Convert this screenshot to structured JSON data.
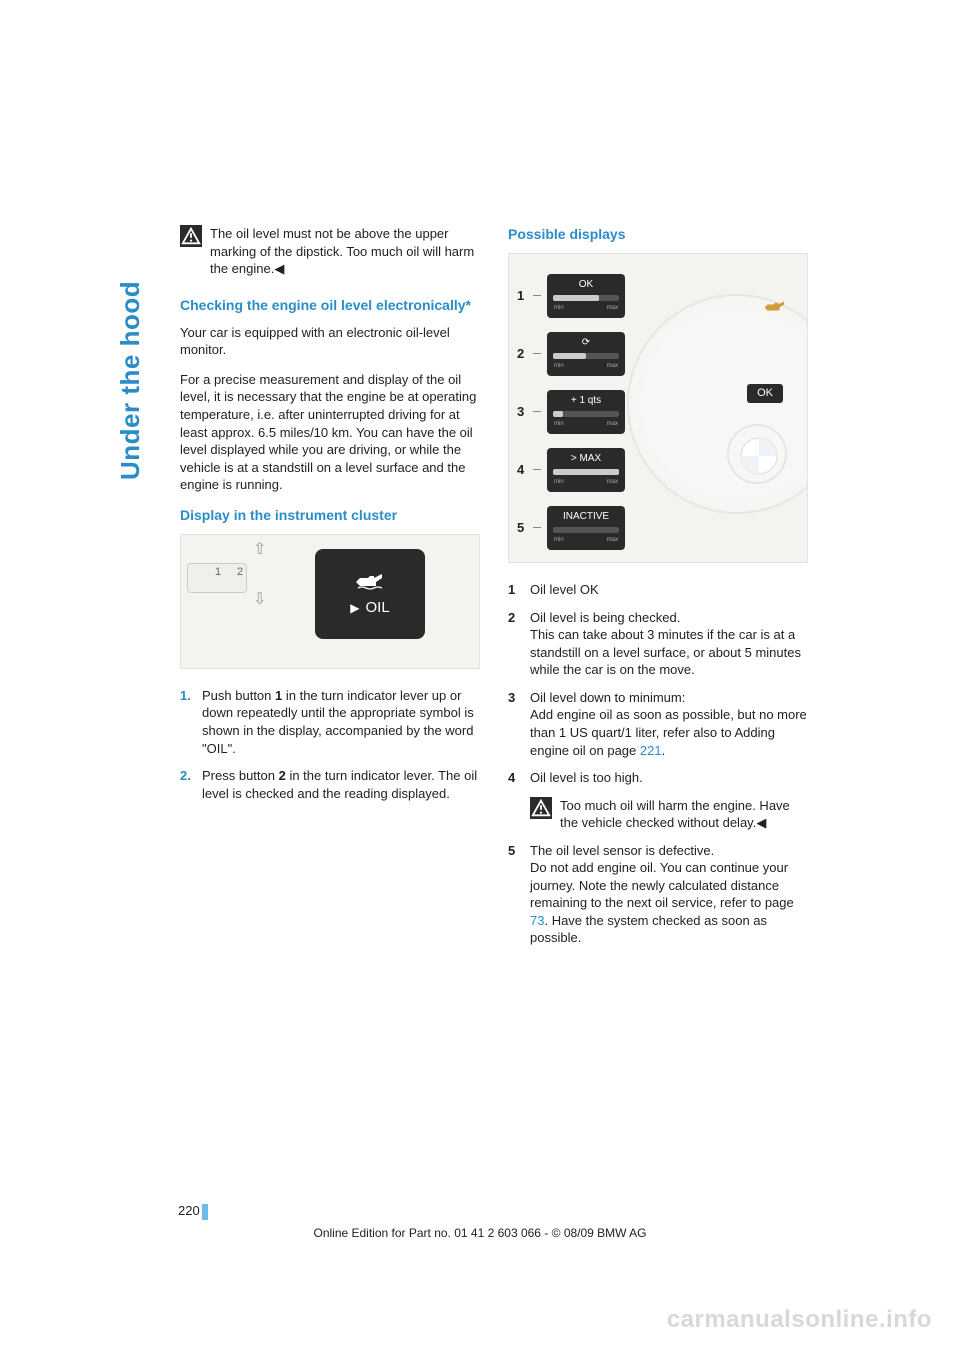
{
  "sidebar": {
    "label": "Under the hood"
  },
  "warning_top": {
    "text": "The oil level must not be above the upper marking of the dipstick. Too much oil will harm the engine.◀"
  },
  "section_check": {
    "heading": "Checking the engine oil level electronically*",
    "p1": "Your car is equipped with an electronic oil-level monitor.",
    "p2": "For a precise measurement and display of the oil level, it is necessary that the engine be at operating temperature, i.e. after uninterrupted driving for at least approx. 6.5 miles/10 km. You can have the oil level displayed while you are driving, or while the vehicle is at a standstill on a level surface and the engine is running."
  },
  "section_display": {
    "heading": "Display in the instrument cluster",
    "fig": {
      "oil_label": "OIL",
      "b1": "1",
      "b2": "2"
    },
    "steps": [
      {
        "n": "1.",
        "t": "Push button 1 in the turn indicator lever up or down repeatedly until the appropriate symbol is shown in the display, accompanied by the word \"OIL\"."
      },
      {
        "n": "2.",
        "t": "Press button 2 in the turn indicator lever. The oil level is checked and the reading displayed."
      }
    ]
  },
  "section_possible": {
    "heading": "Possible displays",
    "rows": [
      {
        "n": "1",
        "label": "OK",
        "fill_pct": 70
      },
      {
        "n": "2",
        "label": "⟳",
        "fill_pct": 50
      },
      {
        "n": "3",
        "label": "+ 1 qts",
        "fill_pct": 15
      },
      {
        "n": "4",
        "label": "> MAX",
        "fill_pct": 100
      },
      {
        "n": "5",
        "label": "INACTIVE",
        "fill_pct": 0
      }
    ],
    "ok_badge": "OK",
    "defs": [
      {
        "n": "1",
        "t": "Oil level OK"
      },
      {
        "n": "2",
        "t": "Oil level is being checked.\nThis can take about 3 minutes if the car is at a standstill on a level surface, or about 5 minutes while the car is on the move."
      },
      {
        "n": "3",
        "t_pre": "Oil level down to minimum:\nAdd engine oil as soon as possible, but no more than 1 US quart/1 liter, refer also to Adding engine oil on page ",
        "link": "221",
        "t_post": "."
      },
      {
        "n": "4",
        "t": "Oil level is too high."
      },
      {
        "n": "5",
        "t_pre": "The oil level sensor is defective.\nDo not add engine oil. You can continue your journey. Note the newly calculated distance remaining to the next oil service, refer to page ",
        "link": "73",
        "t_post": ". Have the system checked as soon as possible."
      }
    ],
    "inline_warning": "Too much oil will harm the engine. Have the vehicle checked without delay.◀"
  },
  "footer": {
    "page_number": "220",
    "line": "Online Edition for Part no. 01 41 2 603 066 - © 08/09 BMW AG"
  },
  "watermark": "carmanualsonline.info",
  "colors": {
    "accent": "#2b8dc8",
    "bar": "#6bbfe6",
    "text": "#222222",
    "fig_bg": "#f3f3f0",
    "dark": "#2a2a2a"
  }
}
